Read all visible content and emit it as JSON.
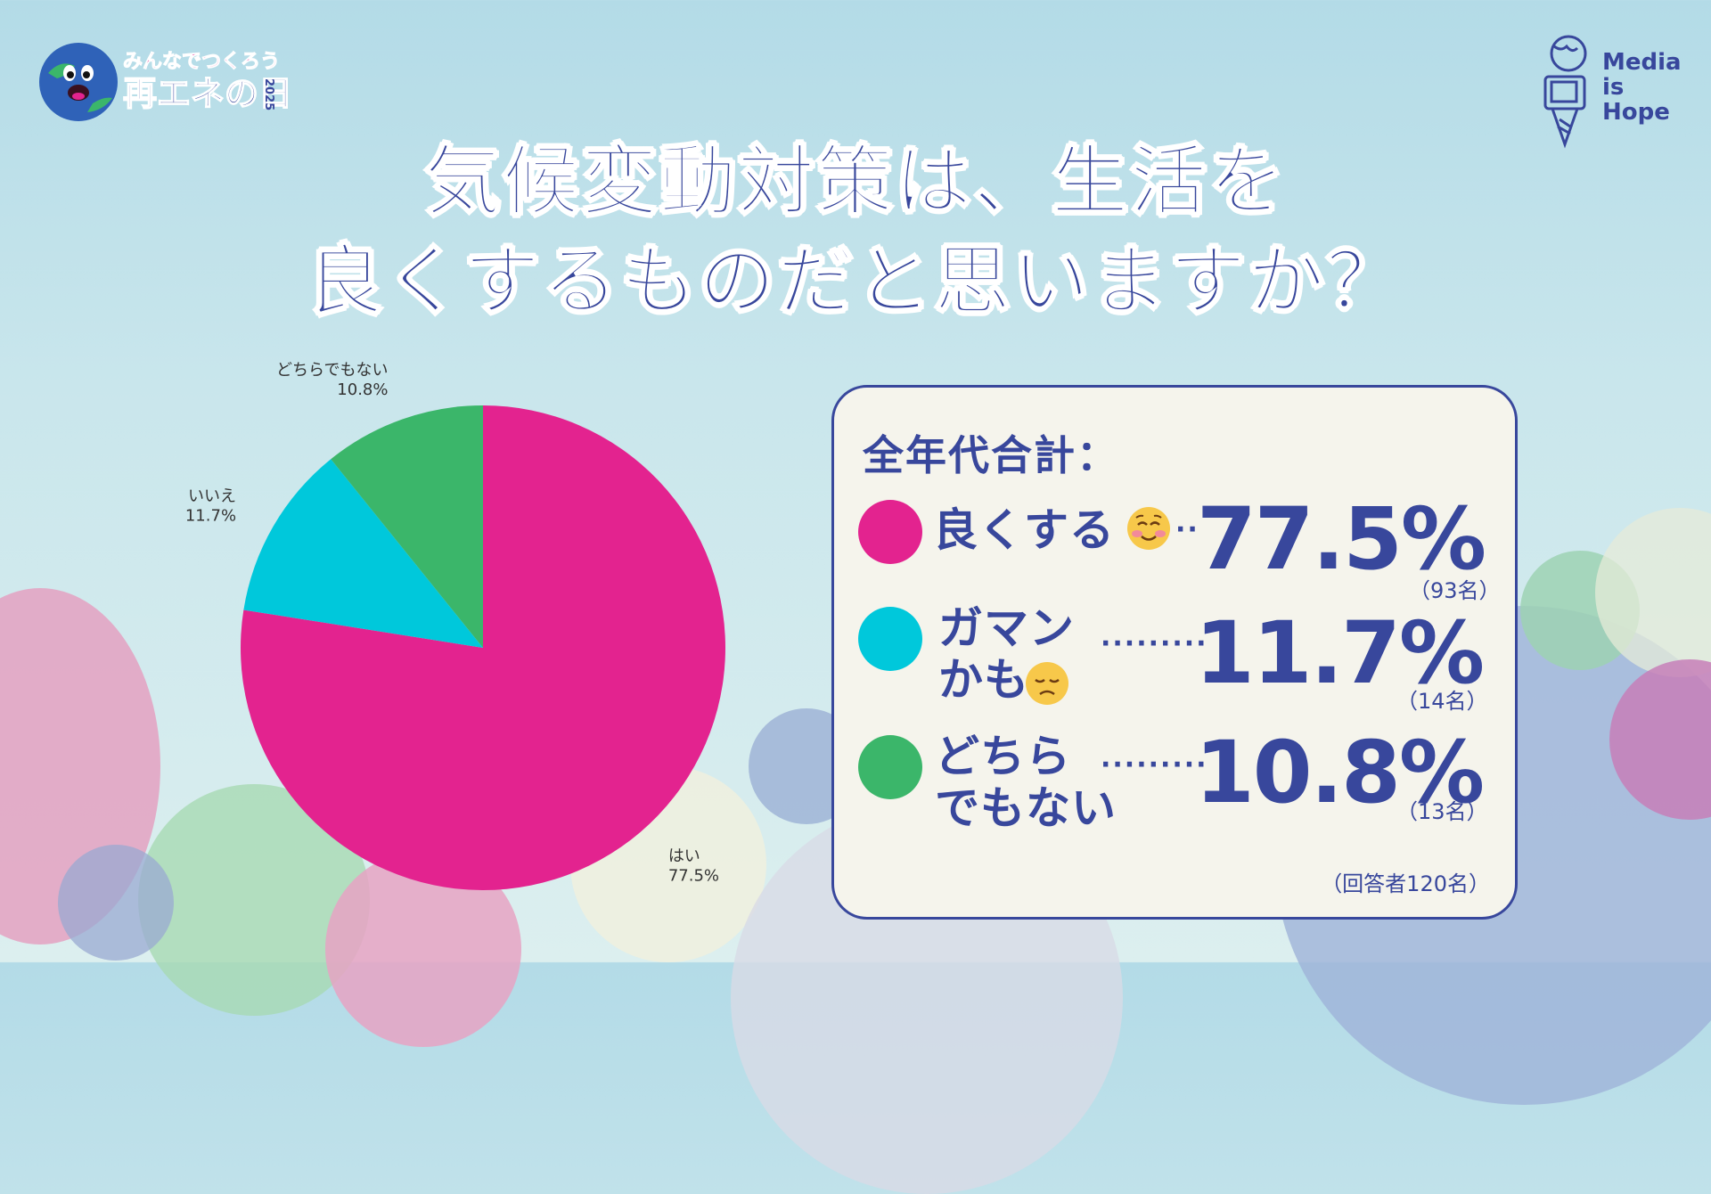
{
  "header": {
    "event_logo_line1": "みんなでつくろう",
    "event_logo_line2": "再エネの日",
    "event_logo_year": "2025",
    "brand_line1": "Media",
    "brand_line2": "is",
    "brand_line3": "Hope"
  },
  "headline": {
    "line1": "気候変動対策は、生活を",
    "line2": "良くするものだと思いますか？"
  },
  "chart_data": {
    "type": "pie",
    "slices": [
      {
        "label": "はい",
        "value": 77.5,
        "value_label": "77.5%",
        "color": "#e3238f"
      },
      {
        "label": "いいえ",
        "value": 11.7,
        "value_label": "11.7%",
        "color": "#00c8db"
      },
      {
        "label": "どちらでもない",
        "value": 10.8,
        "value_label": "10.8%",
        "color": "#3bb66a"
      }
    ],
    "start_angle": "12 o'clock",
    "direction": "clockwise"
  },
  "summary": {
    "title": "全年代合計：",
    "rows": [
      {
        "label_line1": "良くする",
        "label_line2": "",
        "leader": "··",
        "percent": "77.5%",
        "count": "（93名）",
        "color": "#e3238f",
        "emoji": "smiling-blush-emoji"
      },
      {
        "label_line1": "ガマン",
        "label_line2": "かも",
        "leader": "·········",
        "percent": "11.7%",
        "count": "（14名）",
        "color": "#00c8db",
        "emoji": "disappointed-emoji"
      },
      {
        "label_line1": "どちら",
        "label_line2": "でもない",
        "leader": "·········",
        "percent": "10.8%",
        "count": "（13名）",
        "color": "#3bb66a",
        "emoji": ""
      }
    ],
    "respondents": "（回答者120名）"
  },
  "colors": {
    "navy": "#38479c",
    "panel_bg": "#f5f4ec",
    "pink": "#e3238f",
    "cyan": "#00c8db",
    "green": "#3bb66a"
  }
}
